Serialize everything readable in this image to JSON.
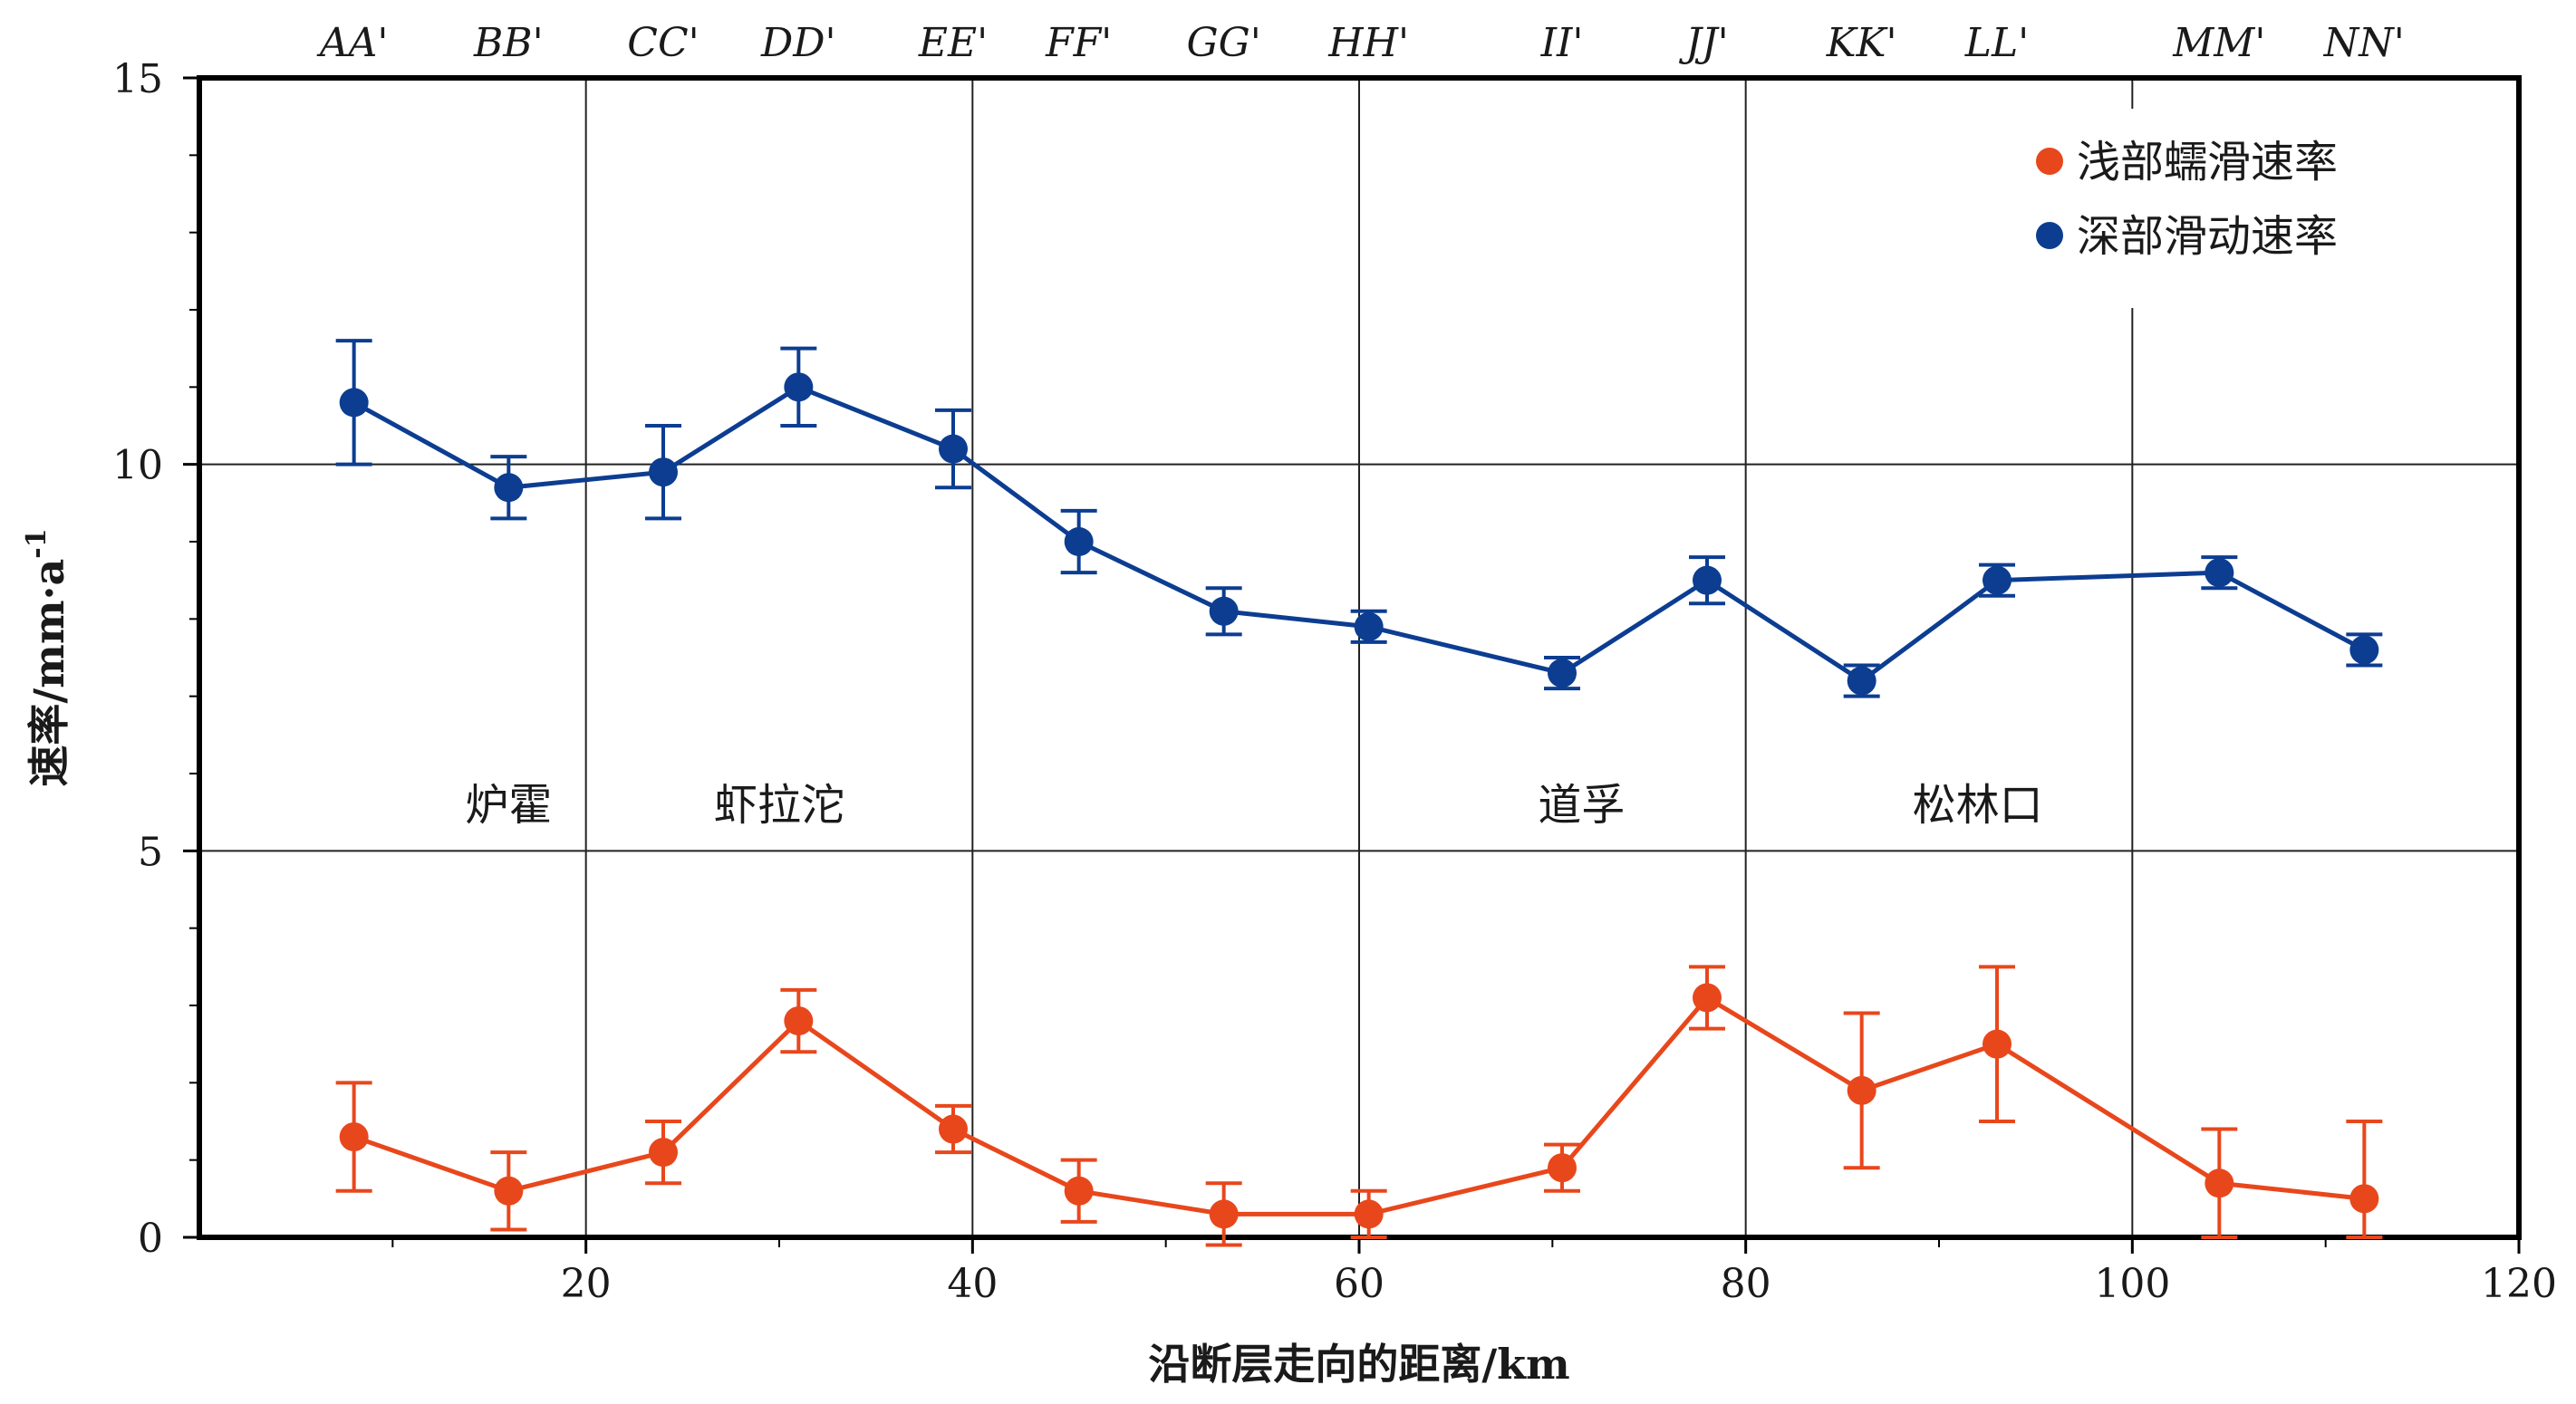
{
  "chart_data": {
    "type": "line",
    "xlabel": "沿断层走向的距离/km",
    "ylabel_main": "速率/mm·a",
    "ylabel_sup": "-1",
    "xlim": [
      0,
      120
    ],
    "ylim": [
      0,
      15
    ],
    "x_ticks": [
      20,
      40,
      60,
      80,
      100,
      120
    ],
    "y_ticks": [
      0,
      5,
      10,
      15
    ],
    "x_gridlines": [
      20,
      40,
      60,
      80,
      100
    ],
    "y_gridlines": [
      5,
      10
    ],
    "profiles": [
      {
        "label": "AA'",
        "x": 8
      },
      {
        "label": "BB'",
        "x": 16
      },
      {
        "label": "CC'",
        "x": 24
      },
      {
        "label": "DD'",
        "x": 31
      },
      {
        "label": "EE'",
        "x": 39
      },
      {
        "label": "FF'",
        "x": 45.5
      },
      {
        "label": "GG'",
        "x": 53
      },
      {
        "label": "HH'",
        "x": 60.5
      },
      {
        "label": "II'",
        "x": 70.5
      },
      {
        "label": "JJ'",
        "x": 78
      },
      {
        "label": "KK'",
        "x": 86
      },
      {
        "label": "LL'",
        "x": 93
      },
      {
        "label": "MM'",
        "x": 104.5
      },
      {
        "label": "NN'",
        "x": 112
      }
    ],
    "places": [
      {
        "label": "炉霍",
        "x": 16,
        "y": 5.4
      },
      {
        "label": "虾拉沱",
        "x": 30,
        "y": 5.4
      },
      {
        "label": "道孚",
        "x": 71.5,
        "y": 5.4
      },
      {
        "label": "松林口",
        "x": 92,
        "y": 5.4
      }
    ],
    "legend_position": "top-right",
    "series": [
      {
        "name": "浅部蠕滑速率",
        "color": "#e8471c",
        "x": [
          8,
          16,
          24,
          31,
          39,
          45.5,
          53,
          60.5,
          70.5,
          78,
          86,
          93,
          104.5,
          112
        ],
        "values": [
          1.3,
          0.6,
          1.1,
          2.8,
          1.4,
          0.6,
          0.3,
          0.3,
          0.9,
          3.1,
          1.9,
          2.5,
          0.7,
          0.5
        ],
        "err_low": [
          0.7,
          0.5,
          0.4,
          0.4,
          0.3,
          0.4,
          0.4,
          0.3,
          0.3,
          0.4,
          1.0,
          1.0,
          0.7,
          0.5
        ],
        "err_high": [
          0.7,
          0.5,
          0.4,
          0.4,
          0.3,
          0.4,
          0.4,
          0.3,
          0.3,
          0.4,
          1.0,
          1.0,
          0.7,
          1.0
        ]
      },
      {
        "name": "深部滑动速率",
        "color": "#0c3d91",
        "x": [
          8,
          16,
          24,
          31,
          39,
          45.5,
          53,
          60.5,
          70.5,
          78,
          86,
          93,
          104.5,
          112
        ],
        "values": [
          10.8,
          9.7,
          9.9,
          11.0,
          10.2,
          9.0,
          8.1,
          7.9,
          7.3,
          8.5,
          7.2,
          8.5,
          8.6,
          7.6
        ],
        "err_low": [
          0.8,
          0.4,
          0.6,
          0.5,
          0.5,
          0.4,
          0.3,
          0.2,
          0.2,
          0.3,
          0.2,
          0.2,
          0.2,
          0.2
        ],
        "err_high": [
          0.8,
          0.4,
          0.6,
          0.5,
          0.5,
          0.4,
          0.3,
          0.2,
          0.2,
          0.3,
          0.2,
          0.2,
          0.2,
          0.2
        ]
      }
    ]
  }
}
